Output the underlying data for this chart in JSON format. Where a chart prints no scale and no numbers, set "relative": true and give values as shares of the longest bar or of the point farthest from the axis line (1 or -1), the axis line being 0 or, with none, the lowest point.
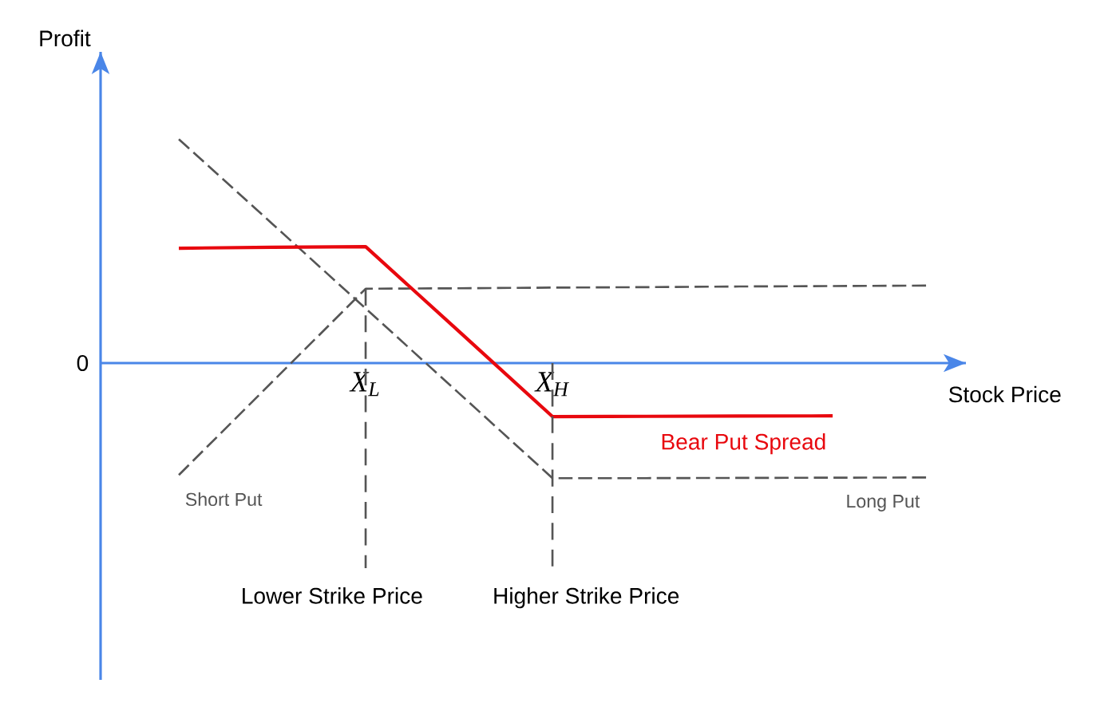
{
  "chart_data": {
    "type": "line",
    "relative": true,
    "xlabel": "Stock Price",
    "ylabel": "Profit",
    "categories": [
      null,
      null,
      "X$_{L}$",
      null,
      "X$_{H}$",
      null,
      null,
      null,
      null
    ],
    "tick_labels": "x",
    "line_style": "dashed",
    "series": [
      {
        "name": "Short Put",
        "color": "#555555",
        "values": [
          -0.5,
          -0.084,
          0.332,
          0.334,
          0.337,
          0.339,
          0.342,
          0.344,
          0.346
        ]
      },
      {
        "name": "Long Put",
        "color": "#555555",
        "values": [
          1.0,
          0.622,
          0.244,
          -0.135,
          -0.514,
          -0.514,
          -0.513,
          -0.512,
          -0.511
        ]
      },
      {
        "name": "Bear Put Spread",
        "color": "#e8080e",
        "line_style": "solid",
        "values": [
          0.513,
          0.517,
          0.52,
          0.141,
          -0.239,
          -0.238,
          -0.237,
          -0.236,
          null
        ]
      }
    ],
    "ref_lines": [
      {
        "axis": "x",
        "value": "X$_{L}$",
        "label": "Lower Strike Price",
        "color": "#555555",
        "line_style": "dashed"
      },
      {
        "axis": "x",
        "value": "X$_{H}$",
        "label": "Higher Strike Price",
        "color": "#555555",
        "line_style": "dashed"
      }
    ],
    "annotations": [
      "0"
    ]
  }
}
